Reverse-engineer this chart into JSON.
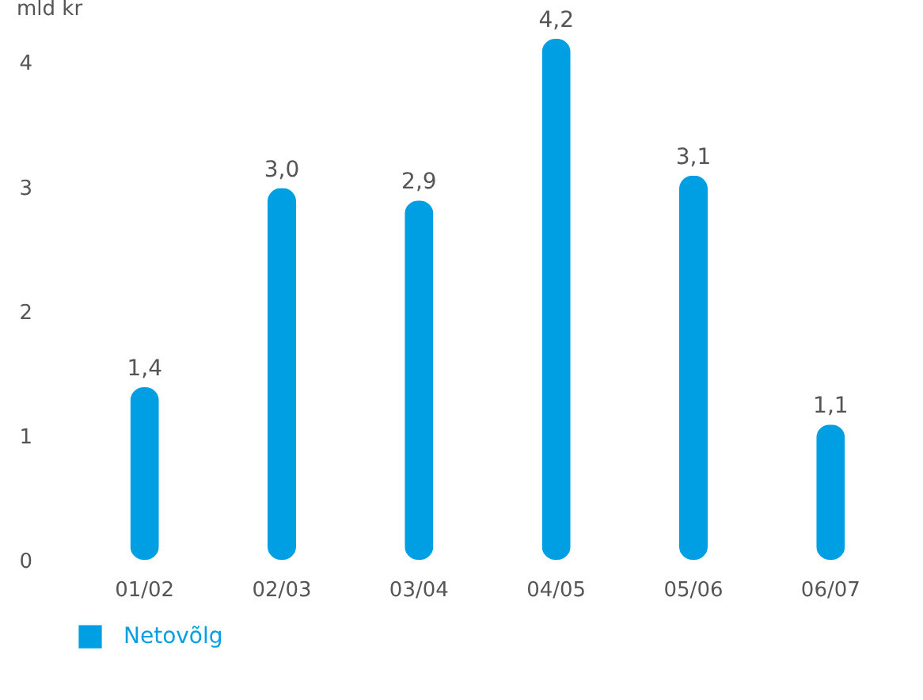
{
  "chart_data": {
    "type": "bar",
    "ylabel": "mld kr",
    "categories": [
      "01/02",
      "02/03",
      "03/04",
      "04/05",
      "05/06",
      "06/07"
    ],
    "series": [
      {
        "name": "Netovõlg",
        "color": "#009fe3",
        "values": [
          1.4,
          3.0,
          2.9,
          4.2,
          3.1,
          1.1
        ],
        "value_labels": [
          "1,4",
          "3,0",
          "2,9",
          "4,2",
          "3,1",
          "1,1"
        ]
      }
    ],
    "ylim": [
      0,
      4.2
    ],
    "yticks": [
      0,
      1,
      2,
      3,
      4
    ],
    "grid": false,
    "legend": "bottom left"
  }
}
